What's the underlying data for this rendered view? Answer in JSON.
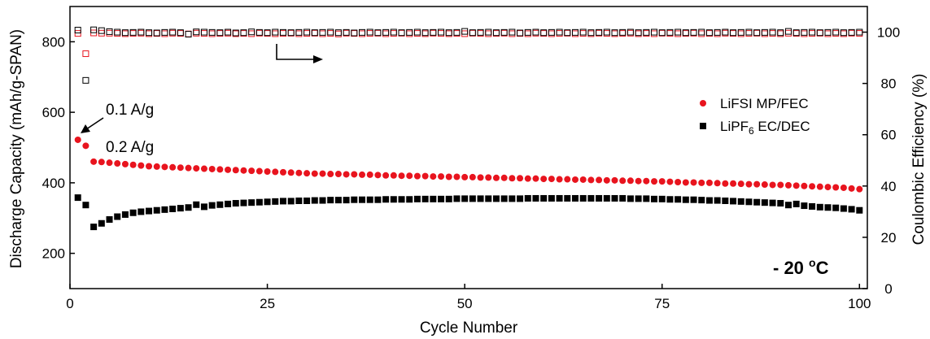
{
  "chart_data": {
    "type": "scatter",
    "title": "",
    "xlabel": "Cycle Number",
    "ylabel": "Discharge Capacity (mAh/g-SPAN)",
    "y2label": "Coulombic Efficiency (%)",
    "xlim": [
      0,
      101
    ],
    "ylim": [
      100,
      900
    ],
    "y2lim": [
      0,
      110
    ],
    "x_ticks": [
      0,
      25,
      50,
      75,
      100
    ],
    "y_ticks": [
      200,
      400,
      600,
      800
    ],
    "y2_ticks": [
      0,
      20,
      40,
      60,
      80,
      100
    ],
    "legend": {
      "placement": "right",
      "entries": [
        {
          "main": "LiFSI MP/FEC",
          "sub": "",
          "tail": "",
          "color": "#e8141e",
          "marker": "circle"
        },
        {
          "main": "LiPF",
          "sub": "6",
          "tail": " EC/DEC",
          "color": "#000000",
          "marker": "square"
        }
      ]
    },
    "annotations": {
      "rate_1": "0.1 A/g",
      "rate_2": "0.2 A/g",
      "temp_main": "- 20 ",
      "temp_sup": "o",
      "temp_tail": "C"
    },
    "series": [
      {
        "name": "LiFSI MP/FEC",
        "axis": "left",
        "color": "#e8141e",
        "marker": "circle-filled",
        "x": [
          1,
          2,
          3,
          4,
          5,
          6,
          7,
          8,
          9,
          10,
          11,
          12,
          13,
          14,
          15,
          16,
          17,
          18,
          19,
          20,
          21,
          22,
          23,
          24,
          25,
          26,
          27,
          28,
          29,
          30,
          31,
          32,
          33,
          34,
          35,
          36,
          37,
          38,
          39,
          40,
          41,
          42,
          43,
          44,
          45,
          46,
          47,
          48,
          49,
          50,
          51,
          52,
          53,
          54,
          55,
          56,
          57,
          58,
          59,
          60,
          61,
          62,
          63,
          64,
          65,
          66,
          67,
          68,
          69,
          70,
          71,
          72,
          73,
          74,
          75,
          76,
          77,
          78,
          79,
          80,
          81,
          82,
          83,
          84,
          85,
          86,
          87,
          88,
          89,
          90,
          91,
          92,
          93,
          94,
          95,
          96,
          97,
          98,
          99,
          100
        ],
        "values": [
          522,
          505,
          460,
          459,
          457,
          455,
          453,
          451,
          449,
          447,
          446,
          445,
          444,
          443,
          442,
          441,
          440,
          439,
          438,
          437,
          436,
          435,
          434,
          433,
          432,
          431,
          430,
          429,
          428,
          427,
          426,
          426,
          425,
          425,
          424,
          424,
          423,
          423,
          422,
          421,
          421,
          420,
          420,
          419,
          419,
          418,
          418,
          417,
          417,
          416,
          416,
          415,
          415,
          414,
          414,
          413,
          413,
          412,
          412,
          411,
          411,
          410,
          410,
          409,
          409,
          408,
          408,
          407,
          407,
          406,
          406,
          405,
          405,
          404,
          404,
          403,
          402,
          401,
          401,
          400,
          400,
          399,
          398,
          398,
          397,
          396,
          396,
          395,
          394,
          394,
          393,
          392,
          391,
          390,
          389,
          388,
          387,
          386,
          384,
          382
        ]
      },
      {
        "name": "LiPF6 EC/DEC",
        "axis": "left",
        "color": "#000000",
        "marker": "square-filled",
        "x": [
          1,
          2,
          3,
          4,
          5,
          6,
          7,
          8,
          9,
          10,
          11,
          12,
          13,
          14,
          15,
          16,
          17,
          18,
          19,
          20,
          21,
          22,
          23,
          24,
          25,
          26,
          27,
          28,
          29,
          30,
          31,
          32,
          33,
          34,
          35,
          36,
          37,
          38,
          39,
          40,
          41,
          42,
          43,
          44,
          45,
          46,
          47,
          48,
          49,
          50,
          51,
          52,
          53,
          54,
          55,
          56,
          57,
          58,
          59,
          60,
          61,
          62,
          63,
          64,
          65,
          66,
          67,
          68,
          69,
          70,
          71,
          72,
          73,
          74,
          75,
          76,
          77,
          78,
          79,
          80,
          81,
          82,
          83,
          84,
          85,
          86,
          87,
          88,
          89,
          90,
          91,
          92,
          93,
          94,
          95,
          96,
          97,
          98,
          99,
          100
        ],
        "values": [
          358,
          337,
          275,
          285,
          296,
          304,
          310,
          315,
          318,
          320,
          322,
          324,
          326,
          328,
          330,
          338,
          332,
          336,
          338,
          340,
          342,
          343,
          344,
          345,
          346,
          347,
          348,
          348,
          349,
          349,
          350,
          350,
          351,
          351,
          351,
          352,
          352,
          352,
          352,
          353,
          353,
          353,
          353,
          354,
          354,
          354,
          354,
          354,
          355,
          355,
          355,
          355,
          355,
          355,
          355,
          355,
          355,
          356,
          356,
          356,
          356,
          356,
          356,
          356,
          356,
          356,
          356,
          356,
          356,
          356,
          355,
          355,
          355,
          354,
          354,
          353,
          353,
          352,
          352,
          351,
          350,
          350,
          349,
          348,
          347,
          346,
          345,
          344,
          343,
          342,
          337,
          340,
          335,
          333,
          331,
          330,
          329,
          327,
          325,
          322
        ]
      },
      {
        "name": "LiFSI MP/FEC",
        "axis": "right",
        "color": "#e8141e",
        "marker": "square-open",
        "x": [
          1,
          2,
          3,
          4,
          5,
          6,
          7,
          8,
          9,
          10,
          11,
          12,
          13,
          14,
          15,
          16,
          17,
          18,
          19,
          20,
          21,
          22,
          23,
          24,
          25,
          26,
          27,
          28,
          29,
          30,
          31,
          32,
          33,
          34,
          35,
          36,
          37,
          38,
          39,
          40,
          41,
          42,
          43,
          44,
          45,
          46,
          47,
          48,
          49,
          50,
          51,
          52,
          53,
          54,
          55,
          56,
          57,
          58,
          59,
          60,
          61,
          62,
          63,
          64,
          65,
          66,
          67,
          68,
          69,
          70,
          71,
          72,
          73,
          74,
          75,
          76,
          77,
          78,
          79,
          80,
          81,
          82,
          83,
          84,
          85,
          86,
          87,
          88,
          89,
          90,
          91,
          92,
          93,
          94,
          95,
          96,
          97,
          98,
          99,
          100
        ],
        "values": [
          99.5,
          91.6,
          99.7,
          99.6,
          99.6,
          99.5,
          99.4,
          99.5,
          99.6,
          99.4,
          99.5,
          99.4,
          99.6,
          99.5,
          99.3,
          99.6,
          99.5,
          99.4,
          99.5,
          99.6,
          99.4,
          99.5,
          99.4,
          99.6,
          99.5,
          99.4,
          99.5,
          99.6,
          99.4,
          99.5,
          99.6,
          99.4,
          99.5,
          99.3,
          99.6,
          99.5,
          99.4,
          99.5,
          99.6,
          99.4,
          99.5,
          99.6,
          99.4,
          99.5,
          99.4,
          99.6,
          99.5,
          99.4,
          99.5,
          99.4,
          99.6,
          99.5,
          99.4,
          99.5,
          99.6,
          99.4,
          99.5,
          99.4,
          99.6,
          99.5,
          99.4,
          99.5,
          99.6,
          99.4,
          99.5,
          99.4,
          99.6,
          99.5,
          99.4,
          99.5,
          99.6,
          99.4,
          99.5,
          99.4,
          99.6,
          99.5,
          99.4,
          99.5,
          99.6,
          99.4,
          99.5,
          99.4,
          99.6,
          99.5,
          99.4,
          99.5,
          99.6,
          99.4,
          99.5,
          99.4,
          99.6,
          99.5,
          99.4,
          99.5,
          99.6,
          99.4,
          99.5,
          99.4,
          99.6,
          99.5
        ]
      },
      {
        "name": "LiPF6 EC/DEC",
        "axis": "right",
        "color": "#000000",
        "marker": "square-open",
        "x": [
          1,
          2,
          3,
          4,
          5,
          6,
          7,
          8,
          9,
          10,
          11,
          12,
          13,
          14,
          15,
          16,
          17,
          18,
          19,
          20,
          21,
          22,
          23,
          24,
          25,
          26,
          27,
          28,
          29,
          30,
          31,
          32,
          33,
          34,
          35,
          36,
          37,
          38,
          39,
          40,
          41,
          42,
          43,
          44,
          45,
          46,
          47,
          48,
          49,
          50,
          51,
          52,
          53,
          54,
          55,
          56,
          57,
          58,
          59,
          60,
          61,
          62,
          63,
          64,
          65,
          66,
          67,
          68,
          69,
          70,
          71,
          72,
          73,
          74,
          75,
          76,
          77,
          78,
          79,
          80,
          81,
          82,
          83,
          84,
          85,
          86,
          87,
          88,
          89,
          90,
          91,
          92,
          93,
          94,
          95,
          96,
          97,
          98,
          99,
          100
        ],
        "values": [
          100.8,
          81.2,
          100.9,
          100.6,
          100.2,
          100.0,
          99.8,
          99.9,
          100.0,
          99.8,
          99.7,
          99.9,
          100.0,
          99.8,
          99.2,
          100.1,
          100.0,
          99.9,
          99.8,
          100.0,
          99.7,
          99.8,
          100.1,
          99.9,
          99.8,
          100.0,
          99.9,
          99.8,
          99.9,
          100.0,
          99.8,
          99.9,
          100.0,
          99.8,
          99.9,
          99.7,
          99.9,
          100.0,
          99.8,
          99.9,
          100.0,
          99.8,
          99.9,
          100.0,
          99.8,
          99.9,
          100.0,
          99.8,
          99.9,
          100.3,
          99.8,
          99.9,
          100.0,
          99.8,
          99.9,
          100.0,
          99.7,
          99.9,
          100.0,
          99.8,
          99.9,
          100.0,
          99.8,
          99.9,
          100.0,
          99.8,
          99.9,
          100.0,
          99.8,
          99.9,
          100.0,
          99.8,
          99.9,
          100.0,
          99.8,
          99.9,
          100.0,
          99.8,
          99.9,
          100.0,
          99.8,
          99.9,
          100.0,
          99.8,
          99.9,
          100.0,
          99.8,
          99.9,
          100.0,
          99.8,
          100.3,
          99.8,
          99.9,
          100.0,
          99.8,
          99.9,
          100.0,
          99.8,
          99.9,
          100.0
        ]
      }
    ]
  }
}
